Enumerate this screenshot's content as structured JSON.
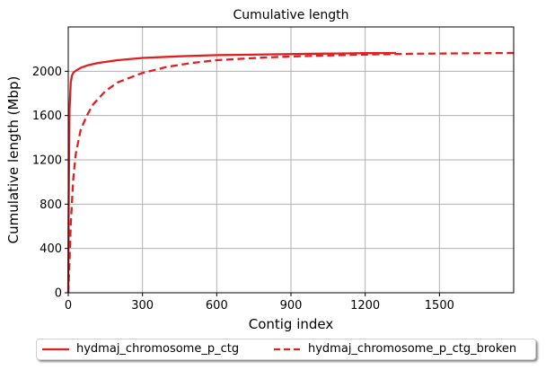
{
  "chart_data": {
    "type": "line",
    "title": "Cumulative length",
    "xlabel": "Contig index",
    "ylabel": "Cumulative length (Mbp)",
    "xlim": [
      0,
      1800
    ],
    "ylim": [
      0,
      2400
    ],
    "xticks": [
      0,
      300,
      600,
      900,
      1200,
      1500
    ],
    "yticks": [
      0,
      400,
      800,
      1200,
      1600,
      2000
    ],
    "grid": true,
    "legend_position": "bottom",
    "series": [
      {
        "name": "hydmaj_chromosome_p_ctg",
        "color": "#e02020",
        "style": "solid",
        "x": [
          0,
          2,
          5,
          10,
          15,
          20,
          30,
          50,
          80,
          120,
          200,
          300,
          450,
          600,
          800,
          1000,
          1200,
          1325
        ],
        "y": [
          0,
          900,
          1650,
          1900,
          1960,
          1985,
          2005,
          2030,
          2055,
          2075,
          2100,
          2120,
          2135,
          2145,
          2152,
          2158,
          2163,
          2165
        ]
      },
      {
        "name": "hydmaj_chromosome_p_ctg_broken",
        "color": "#e02020",
        "style": "dashed",
        "x": [
          0,
          5,
          10,
          20,
          30,
          50,
          75,
          100,
          150,
          200,
          300,
          400,
          500,
          600,
          800,
          1000,
          1200,
          1400,
          1600,
          1800
        ],
        "y": [
          0,
          280,
          620,
          1020,
          1250,
          1470,
          1600,
          1700,
          1820,
          1900,
          1985,
          2040,
          2075,
          2100,
          2125,
          2140,
          2150,
          2158,
          2162,
          2165
        ]
      }
    ]
  }
}
